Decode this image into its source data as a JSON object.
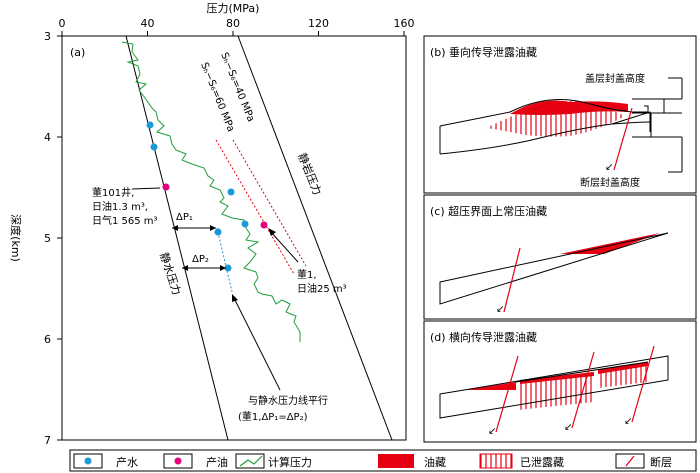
{
  "main_panel": {
    "x_axis_title": "压力(MPa)",
    "y_axis_title": "深度(km)",
    "x_ticks": [
      "0",
      "40",
      "80",
      "120",
      "160"
    ],
    "y_ticks": [
      "3",
      "4",
      "5",
      "6",
      "7"
    ],
    "panel_tag": "(a)",
    "lithostatic_label": "静岩压力",
    "hydrostatic_label": "静水压力",
    "label_40": "Sₕ−S₆=40 MPa",
    "label_60": "Sₕ−S₆=60 MPa",
    "well_dong101_line1": "董101井,",
    "well_dong101_line2": "日油1.3 m³,",
    "well_dong101_line3": "日气1 565 m³",
    "well_dong1_line1": "董1,",
    "well_dong1_line2": "日油25 m³",
    "dp1": "ΔP₁",
    "dp2": "ΔP₂",
    "parallel_line1": "与静水压力线平行",
    "parallel_line2": "(董1,ΔP₁=ΔP₂)"
  },
  "panel_b": {
    "title": "(b)   垂向传导泄露油藏",
    "cap_label": "盖层封盖高度",
    "fault_label": "断层封盖高度"
  },
  "panel_c": {
    "title": "(c)   超压界面上常压油藏"
  },
  "panel_d": {
    "title": "(d)   横向传导泄露油藏"
  },
  "legend": {
    "water": "产水",
    "oil": "产油",
    "calc_pressure": "计算压力",
    "reservoir": "油藏",
    "leaked": "已泄露藏",
    "fault": "断层"
  },
  "colors": {
    "water_point": "#1a9ad6",
    "oil_point": "#e6007e",
    "calc_line": "#1f9e3a",
    "oil_fill": "#e60012",
    "fault": "#e60012"
  }
}
